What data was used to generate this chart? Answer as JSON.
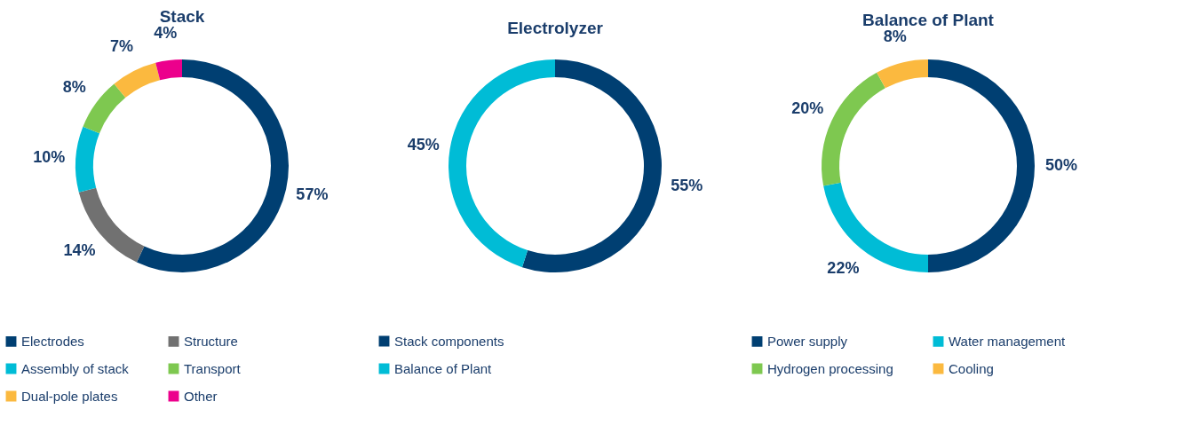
{
  "chart_data": [
    {
      "type": "donut",
      "title": "Stack",
      "categories": [
        "Electrodes",
        "Structure",
        "Assembly of stack",
        "Transport",
        "Dual-pole plates",
        "Other"
      ],
      "values": [
        57,
        14,
        10,
        8,
        7,
        4
      ],
      "value_labels": [
        "57%",
        "14%",
        "10%",
        "8%",
        "7%",
        "4%"
      ],
      "colors": [
        "#003f72",
        "#717171",
        "#00bcd6",
        "#7ec850",
        "#fbb93f",
        "#ec008c"
      ],
      "legend": "bottom"
    },
    {
      "type": "donut",
      "title": "Electrolyzer",
      "categories": [
        "Stack components",
        "Balance of Plant"
      ],
      "values": [
        55,
        45
      ],
      "value_labels": [
        "55%",
        "45%"
      ],
      "colors": [
        "#003f72",
        "#00bcd6"
      ],
      "legend": "bottom"
    },
    {
      "type": "donut",
      "title": "Balance of Plant",
      "categories": [
        "Power supply",
        "Water management",
        "Hydrogen processing",
        "Cooling"
      ],
      "values": [
        50,
        22,
        20,
        8
      ],
      "value_labels": [
        "50%",
        "22%",
        "20%",
        "8%"
      ],
      "colors": [
        "#003f72",
        "#00bcd6",
        "#7ec850",
        "#fbb93f"
      ],
      "legend": "bottom"
    }
  ]
}
